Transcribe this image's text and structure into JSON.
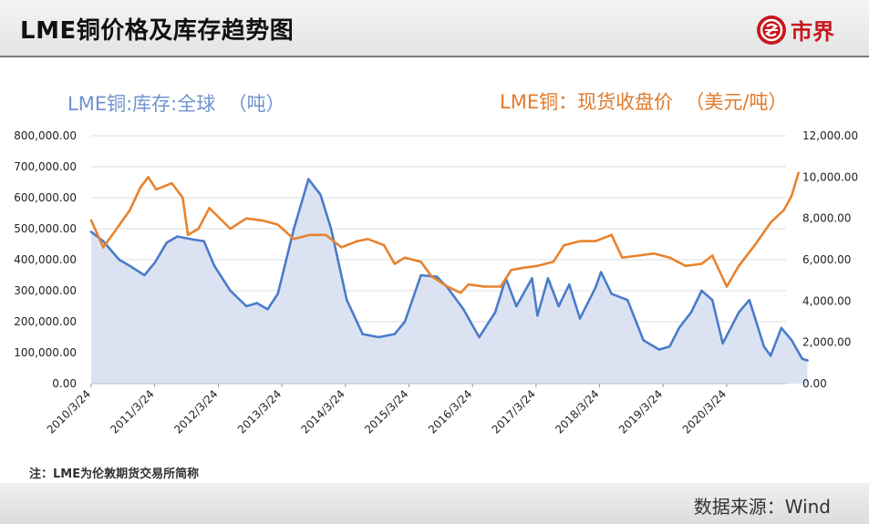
{
  "header": {
    "title": "LME铜价格及库存趋势图",
    "brand_name": "市界",
    "brand_color": "#c8161d"
  },
  "footer": {
    "note": "注：LME为伦敦期货交易所简称",
    "source": "数据来源：Wind"
  },
  "chart_data": {
    "type": "line",
    "legend_left": "LME铜:库存:全球  （吨）",
    "legend_right": "LME铜：现货收盘价  （美元/吨）",
    "x": [
      "2010/3/24",
      "2011/3/24",
      "2012/3/24",
      "2013/3/24",
      "2014/3/24",
      "2015/3/24",
      "2016/3/24",
      "2017/3/24",
      "2018/3/24",
      "2019/3/24",
      "2020/3/24"
    ],
    "y_left_ticks": [
      "0.00",
      "100,000.00",
      "200,000.00",
      "300,000.00",
      "400,000.00",
      "500,000.00",
      "600,000.00",
      "700,000.00",
      "800,000.00"
    ],
    "y_right_ticks": [
      "0.00",
      "2,000.00",
      "4,000.00",
      "6,000.00",
      "8,000.00",
      "10,000.00",
      "12,000.00"
    ],
    "ylim_left": [
      0,
      800000
    ],
    "ylim_right": [
      0,
      12000
    ],
    "grid": true,
    "series": [
      {
        "name": "LME铜:库存:全球  （吨）",
        "axis": "left",
        "color": "#4a7cc9",
        "fill": "#dbe3f3",
        "points": [
          [
            "2010/3/24",
            490000
          ],
          [
            "2010/6/1",
            460000
          ],
          [
            "2010/9/1",
            400000
          ],
          [
            "2010/11/1",
            380000
          ],
          [
            "2011/1/24",
            350000
          ],
          [
            "2011/3/24",
            390000
          ],
          [
            "2011/6/1",
            455000
          ],
          [
            "2011/8/1",
            475000
          ],
          [
            "2011/11/1",
            465000
          ],
          [
            "2012/1/1",
            460000
          ],
          [
            "2012/3/1",
            380000
          ],
          [
            "2012/6/1",
            300000
          ],
          [
            "2012/9/1",
            250000
          ],
          [
            "2012/11/1",
            260000
          ],
          [
            "2013/1/1",
            240000
          ],
          [
            "2013/3/1",
            290000
          ],
          [
            "2013/6/1",
            500000
          ],
          [
            "2013/8/24",
            660000
          ],
          [
            "2013/11/1",
            610000
          ],
          [
            "2014/1/1",
            500000
          ],
          [
            "2014/4/1",
            270000
          ],
          [
            "2014/7/1",
            160000
          ],
          [
            "2014/10/1",
            150000
          ],
          [
            "2015/1/1",
            160000
          ],
          [
            "2015/3/1",
            200000
          ],
          [
            "2015/6/1",
            350000
          ],
          [
            "2015/9/1",
            345000
          ],
          [
            "2015/11/1",
            310000
          ],
          [
            "2016/2/1",
            240000
          ],
          [
            "2016/5/1",
            150000
          ],
          [
            "2016/8/1",
            230000
          ],
          [
            "2016/10/1",
            340000
          ],
          [
            "2016/12/1",
            250000
          ],
          [
            "2017/3/1",
            340000
          ],
          [
            "2017/4/1",
            220000
          ],
          [
            "2017/6/1",
            340000
          ],
          [
            "2017/8/1",
            250000
          ],
          [
            "2017/10/1",
            320000
          ],
          [
            "2017/12/1",
            210000
          ],
          [
            "2018/1/15",
            260000
          ],
          [
            "2018/3/1",
            310000
          ],
          [
            "2018/4/1",
            360000
          ],
          [
            "2018/6/1",
            290000
          ],
          [
            "2018/9/1",
            270000
          ],
          [
            "2018/12/1",
            140000
          ],
          [
            "2019/3/1",
            110000
          ],
          [
            "2019/5/1",
            120000
          ],
          [
            "2019/6/24",
            180000
          ],
          [
            "2019/9/1",
            230000
          ],
          [
            "2019/11/1",
            300000
          ],
          [
            "2020/1/1",
            270000
          ],
          [
            "2020/3/1",
            130000
          ],
          [
            "2020/6/1",
            230000
          ],
          [
            "2020/8/1",
            270000
          ],
          [
            "2020/10/24",
            120000
          ],
          [
            "2020/12/1",
            90000
          ],
          [
            "2021/2/1",
            180000
          ],
          [
            "2021/4/1",
            140000
          ],
          [
            "2021/6/1",
            80000
          ],
          [
            "2021/7/1",
            75000
          ]
        ]
      },
      {
        "name": "LME铜：现货收盘价  （美元/吨）",
        "axis": "right",
        "color": "#e8822e",
        "points": [
          [
            "2010/3/24",
            7900
          ],
          [
            "2010/6/1",
            6600
          ],
          [
            "2010/8/1",
            7300
          ],
          [
            "2010/11/1",
            8400
          ],
          [
            "2011/1/1",
            9500
          ],
          [
            "2011/2/15",
            10000
          ],
          [
            "2011/4/1",
            9400
          ],
          [
            "2011/7/1",
            9700
          ],
          [
            "2011/9/1",
            9000
          ],
          [
            "2011/10/1",
            7200
          ],
          [
            "2011/12/1",
            7500
          ],
          [
            "2012/2/1",
            8500
          ],
          [
            "2012/6/1",
            7500
          ],
          [
            "2012/9/1",
            8000
          ],
          [
            "2012/12/1",
            7900
          ],
          [
            "2013/3/1",
            7700
          ],
          [
            "2013/6/1",
            7000
          ],
          [
            "2013/9/1",
            7200
          ],
          [
            "2013/12/1",
            7200
          ],
          [
            "2014/3/1",
            6600
          ],
          [
            "2014/6/1",
            6900
          ],
          [
            "2014/8/1",
            7000
          ],
          [
            "2014/11/1",
            6700
          ],
          [
            "2015/1/1",
            5800
          ],
          [
            "2015/3/1",
            6100
          ],
          [
            "2015/6/1",
            5900
          ],
          [
            "2015/8/1",
            5200
          ],
          [
            "2015/11/1",
            4700
          ],
          [
            "2016/1/15",
            4400
          ],
          [
            "2016/3/1",
            4800
          ],
          [
            "2016/6/1",
            4700
          ],
          [
            "2016/9/1",
            4700
          ],
          [
            "2016/11/1",
            5500
          ],
          [
            "2017/1/1",
            5600
          ],
          [
            "2017/4/1",
            5700
          ],
          [
            "2017/7/1",
            5900
          ],
          [
            "2017/9/1",
            6700
          ],
          [
            "2017/12/1",
            6900
          ],
          [
            "2018/3/1",
            6900
          ],
          [
            "2018/6/1",
            7200
          ],
          [
            "2018/8/1",
            6100
          ],
          [
            "2018/11/1",
            6200
          ],
          [
            "2019/2/1",
            6300
          ],
          [
            "2019/5/1",
            6100
          ],
          [
            "2019/8/1",
            5700
          ],
          [
            "2019/11/1",
            5800
          ],
          [
            "2020/1/1",
            6200
          ],
          [
            "2020/3/24",
            4700
          ],
          [
            "2020/6/1",
            5700
          ],
          [
            "2020/9/1",
            6700
          ],
          [
            "2020/12/1",
            7800
          ],
          [
            "2021/2/15",
            8400
          ],
          [
            "2021/4/1",
            9100
          ],
          [
            "2021/5/10",
            10200
          ]
        ]
      }
    ]
  }
}
